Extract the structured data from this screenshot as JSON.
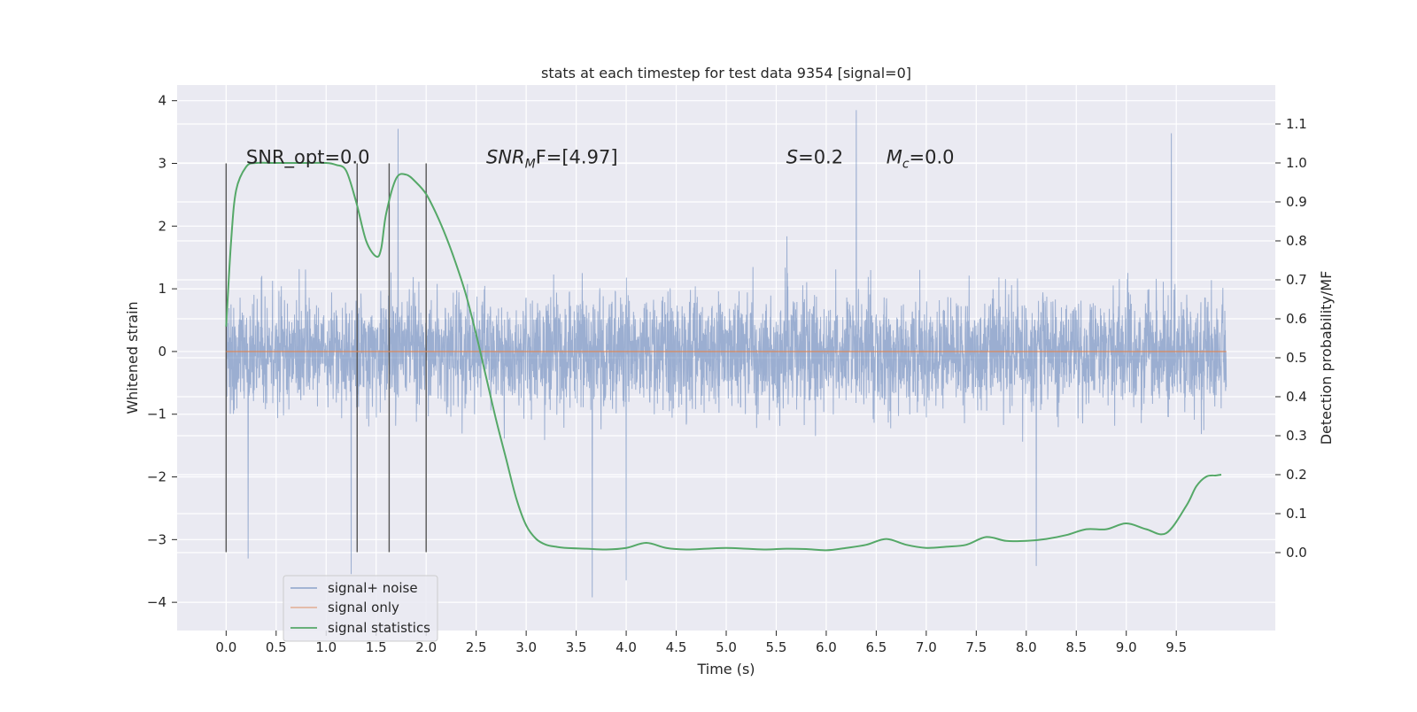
{
  "chart_data": {
    "type": "line",
    "title": "stats at each timestep for test data 9354 [signal=0]",
    "xlabel": "Time (s)",
    "ylabel_left": "Whitened strain",
    "ylabel_right": "Detection probability/MF",
    "xlim": [
      -0.49,
      10.49
    ],
    "ylim_left": [
      -4.45,
      4.25
    ],
    "ylim_right": [
      -0.2,
      1.2
    ],
    "x_ticks": [
      0.0,
      0.5,
      1.0,
      1.5,
      2.0,
      2.5,
      3.0,
      3.5,
      4.0,
      4.5,
      5.0,
      5.5,
      6.0,
      6.5,
      7.0,
      7.5,
      8.0,
      8.5,
      9.0,
      9.5
    ],
    "x_tick_labels": [
      "0.0",
      "0.5",
      "1.0",
      "1.5",
      "2.0",
      "2.5",
      "3.0",
      "3.5",
      "4.0",
      "4.5",
      "5.0",
      "5.5",
      "6.0",
      "6.5",
      "7.0",
      "7.5",
      "8.0",
      "8.5",
      "9.0",
      "9.5"
    ],
    "y_left_ticks": [
      -4,
      -3,
      -2,
      -1,
      0,
      1,
      2,
      3,
      4
    ],
    "y_left_tick_labels": [
      "−4",
      "−3",
      "−2",
      "−1",
      "0",
      "1",
      "2",
      "3",
      "4"
    ],
    "y_right_ticks": [
      0.0,
      0.1,
      0.2,
      0.3,
      0.4,
      0.5,
      0.6,
      0.7,
      0.8,
      0.9,
      1.0,
      1.1
    ],
    "y_right_tick_labels": [
      "0.0",
      "0.1",
      "0.2",
      "0.3",
      "0.4",
      "0.5",
      "0.6",
      "0.7",
      "0.8",
      "0.9",
      "1.0",
      "1.1"
    ],
    "grid": true,
    "legend_position": "lower-left",
    "annotations": [
      {
        "kind": "plain",
        "text": "SNR_opt=0.0",
        "x": 0.2,
        "y": 3.0
      },
      {
        "kind": "sub",
        "base": "SNR",
        "sub": "M",
        "rest": "F=[4.97]",
        "x": 2.6,
        "y": 3.0
      },
      {
        "kind": "italic",
        "base": "S",
        "rest": "=0.2",
        "x": 5.6,
        "y": 3.0
      },
      {
        "kind": "sub",
        "base": "M",
        "sub": "c",
        "rest": "=0.0",
        "x": 6.6,
        "y": 3.0
      }
    ],
    "vertical_lines": {
      "x": [
        0.0,
        1.31,
        1.63,
        2.0
      ],
      "y_range": [
        -3.2,
        3.0
      ],
      "color": "#555555"
    },
    "series": [
      {
        "name": "signal+ noise",
        "axis": "left",
        "color": "#4c72b0",
        "opacity": 0.5,
        "x_range": [
          0.0,
          10.0
        ],
        "samples": 4096,
        "typical_range": [
          -1.6,
          1.8
        ],
        "extremes": [
          {
            "x": 6.3,
            "y": 3.85
          },
          {
            "x": 9.45,
            "y": 3.48
          },
          {
            "x": 1.72,
            "y": 3.55
          },
          {
            "x": 3.66,
            "y": -3.92
          },
          {
            "x": 4.0,
            "y": -3.65
          },
          {
            "x": 1.25,
            "y": -3.55
          },
          {
            "x": 8.1,
            "y": -3.42
          },
          {
            "x": 0.22,
            "y": -3.3
          }
        ]
      },
      {
        "name": "signal only",
        "axis": "left",
        "color": "#dd8452",
        "x": [
          0.0,
          10.0
        ],
        "y": [
          0.0,
          0.0
        ]
      },
      {
        "name": "signal statistics",
        "axis": "right",
        "color": "#55a868",
        "x": [
          0.0,
          0.05,
          0.1,
          0.2,
          0.3,
          0.5,
          0.8,
          1.0,
          1.1,
          1.2,
          1.3,
          1.4,
          1.5,
          1.55,
          1.6,
          1.7,
          1.8,
          1.9,
          2.0,
          2.1,
          2.2,
          2.3,
          2.4,
          2.5,
          2.6,
          2.7,
          2.8,
          2.9,
          3.0,
          3.1,
          3.2,
          3.3,
          3.4,
          3.6,
          3.8,
          4.0,
          4.2,
          4.4,
          4.6,
          4.8,
          5.0,
          5.2,
          5.4,
          5.6,
          5.8,
          6.0,
          6.2,
          6.4,
          6.6,
          6.8,
          7.0,
          7.2,
          7.4,
          7.6,
          7.8,
          8.0,
          8.2,
          8.4,
          8.6,
          8.8,
          9.0,
          9.2,
          9.4,
          9.6,
          9.7,
          9.8,
          9.9,
          9.95
        ],
        "y": [
          0.58,
          0.8,
          0.93,
          0.99,
          1.0,
          1.0,
          1.0,
          1.0,
          0.995,
          0.98,
          0.9,
          0.8,
          0.76,
          0.78,
          0.87,
          0.96,
          0.97,
          0.95,
          0.92,
          0.87,
          0.81,
          0.74,
          0.66,
          0.56,
          0.45,
          0.34,
          0.24,
          0.14,
          0.07,
          0.035,
          0.02,
          0.015,
          0.012,
          0.01,
          0.008,
          0.012,
          0.025,
          0.012,
          0.008,
          0.01,
          0.012,
          0.01,
          0.008,
          0.01,
          0.009,
          0.006,
          0.012,
          0.02,
          0.035,
          0.02,
          0.012,
          0.015,
          0.02,
          0.04,
          0.03,
          0.03,
          0.035,
          0.045,
          0.06,
          0.06,
          0.075,
          0.06,
          0.05,
          0.12,
          0.17,
          0.195,
          0.198,
          0.2
        ]
      }
    ]
  }
}
